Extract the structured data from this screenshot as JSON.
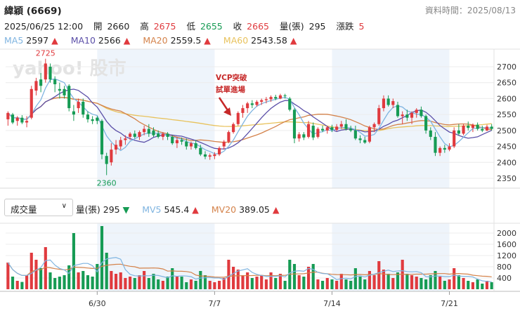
{
  "header": {
    "title": "緯穎 (6669)",
    "as_of": "資料時間：2025/08/13"
  },
  "quote": {
    "datetime": "2025/06/25 12:00",
    "open_label": "開",
    "open": "2660",
    "high_label": "高",
    "high": "2675",
    "low_label": "低",
    "low": "2655",
    "close_label": "收",
    "close": "2665",
    "vol_label": "量(張)",
    "vol": "295",
    "chg_label": "漲跌",
    "chg": "5"
  },
  "ma_legend": [
    {
      "label": "MA5",
      "value": "2597",
      "color": "#7fb4e0",
      "arrow": "▲"
    },
    {
      "label": "MA10",
      "value": "2566",
      "color": "#5b4fa8",
      "arrow": "▲"
    },
    {
      "label": "MA20",
      "value": "2559.5",
      "color": "#d4824a",
      "arrow": "▲"
    },
    {
      "label": "MA60",
      "value": "2543.58",
      "color": "#e8c25c",
      "arrow": "▲"
    }
  ],
  "volume_panel": {
    "dropdown_label": "成交量",
    "vol_label": "量(張)",
    "vol_value": "295",
    "vol_arrow": "▼",
    "mv5_label": "MV5",
    "mv5_value": "545.4",
    "mv5_arrow": "▲",
    "mv20_label": "MV20",
    "mv20_value": "389.05",
    "mv20_arrow": "▲"
  },
  "annotation": {
    "line1": "VCP突破",
    "line2": "試單進場"
  },
  "watermark": "yahoo! 股市",
  "chart_data": {
    "type": "candlestick",
    "price_axis": {
      "ticks": [
        2350,
        2400,
        2450,
        2500,
        2550,
        2600,
        2650,
        2700
      ]
    },
    "volume_axis": {
      "ticks": [
        400,
        800,
        1200,
        1600,
        2000
      ]
    },
    "date_labels": [
      "6/30",
      "7/7",
      "7/14",
      "7/21"
    ],
    "high_label": "2725",
    "low_label": "2360",
    "colors": {
      "up": "#e03a3e",
      "down": "#169b54"
    },
    "candles": [
      {
        "o": 2535,
        "h": 2560,
        "l": 2515,
        "c": 2555,
        "v": 950
      },
      {
        "o": 2550,
        "h": 2555,
        "l": 2520,
        "c": 2525,
        "v": 450
      },
      {
        "o": 2530,
        "h": 2545,
        "l": 2515,
        "c": 2540,
        "v": 300
      },
      {
        "o": 2540,
        "h": 2548,
        "l": 2520,
        "c": 2525,
        "v": 260
      },
      {
        "o": 2525,
        "h": 2545,
        "l": 2510,
        "c": 2530,
        "v": 500
      },
      {
        "o": 2540,
        "h": 2640,
        "l": 2535,
        "c": 2630,
        "v": 1300
      },
      {
        "o": 2625,
        "h": 2665,
        "l": 2610,
        "c": 2655,
        "v": 1050
      },
      {
        "o": 2660,
        "h": 2680,
        "l": 2620,
        "c": 2640,
        "v": 750
      },
      {
        "o": 2660,
        "h": 2725,
        "l": 2650,
        "c": 2710,
        "v": 1500
      },
      {
        "o": 2700,
        "h": 2710,
        "l": 2650,
        "c": 2660,
        "v": 600
      },
      {
        "o": 2660,
        "h": 2670,
        "l": 2620,
        "c": 2645,
        "v": 400
      },
      {
        "o": 2630,
        "h": 2650,
        "l": 2600,
        "c": 2625,
        "v": 450
      },
      {
        "o": 2630,
        "h": 2640,
        "l": 2600,
        "c": 2610,
        "v": 500
      },
      {
        "o": 2640,
        "h": 2645,
        "l": 2560,
        "c": 2570,
        "v": 850
      },
      {
        "o": 2560,
        "h": 2580,
        "l": 2530,
        "c": 2550,
        "v": 2000
      },
      {
        "o": 2570,
        "h": 2600,
        "l": 2555,
        "c": 2590,
        "v": 600
      },
      {
        "o": 2590,
        "h": 2600,
        "l": 2540,
        "c": 2550,
        "v": 650
      },
      {
        "o": 2550,
        "h": 2560,
        "l": 2525,
        "c": 2535,
        "v": 500
      },
      {
        "o": 2535,
        "h": 2545,
        "l": 2520,
        "c": 2530,
        "v": 450
      },
      {
        "o": 2540,
        "h": 2545,
        "l": 2520,
        "c": 2530,
        "v": 900
      },
      {
        "o": 2530,
        "h": 2535,
        "l": 2410,
        "c": 2425,
        "v": 2250
      },
      {
        "o": 2420,
        "h": 2430,
        "l": 2360,
        "c": 2395,
        "v": 1300
      },
      {
        "o": 2400,
        "h": 2460,
        "l": 2390,
        "c": 2440,
        "v": 650
      },
      {
        "o": 2440,
        "h": 2470,
        "l": 2425,
        "c": 2455,
        "v": 550
      },
      {
        "o": 2450,
        "h": 2480,
        "l": 2440,
        "c": 2470,
        "v": 600
      },
      {
        "o": 2470,
        "h": 2485,
        "l": 2455,
        "c": 2475,
        "v": 400
      },
      {
        "o": 2480,
        "h": 2495,
        "l": 2470,
        "c": 2490,
        "v": 450
      },
      {
        "o": 2490,
        "h": 2500,
        "l": 2475,
        "c": 2480,
        "v": 400
      },
      {
        "o": 2480,
        "h": 2500,
        "l": 2470,
        "c": 2495,
        "v": 500
      },
      {
        "o": 2495,
        "h": 2515,
        "l": 2485,
        "c": 2505,
        "v": 650
      },
      {
        "o": 2505,
        "h": 2520,
        "l": 2480,
        "c": 2490,
        "v": 400
      },
      {
        "o": 2500,
        "h": 2510,
        "l": 2480,
        "c": 2485,
        "v": 550
      },
      {
        "o": 2490,
        "h": 2500,
        "l": 2475,
        "c": 2480,
        "v": 350
      },
      {
        "o": 2480,
        "h": 2495,
        "l": 2470,
        "c": 2490,
        "v": 300
      },
      {
        "o": 2490,
        "h": 2495,
        "l": 2470,
        "c": 2480,
        "v": 450
      },
      {
        "o": 2480,
        "h": 2485,
        "l": 2455,
        "c": 2460,
        "v": 750
      },
      {
        "o": 2460,
        "h": 2480,
        "l": 2445,
        "c": 2470,
        "v": 450
      },
      {
        "o": 2470,
        "h": 2478,
        "l": 2455,
        "c": 2465,
        "v": 450
      },
      {
        "o": 2465,
        "h": 2475,
        "l": 2440,
        "c": 2450,
        "v": 250
      },
      {
        "o": 2450,
        "h": 2465,
        "l": 2440,
        "c": 2460,
        "v": 350
      },
      {
        "o": 2460,
        "h": 2470,
        "l": 2440,
        "c": 2445,
        "v": 300
      },
      {
        "o": 2445,
        "h": 2455,
        "l": 2420,
        "c": 2425,
        "v": 650
      },
      {
        "o": 2425,
        "h": 2435,
        "l": 2410,
        "c": 2418,
        "v": 500
      },
      {
        "o": 2418,
        "h": 2428,
        "l": 2408,
        "c": 2422,
        "v": 300
      },
      {
        "o": 2420,
        "h": 2432,
        "l": 2410,
        "c": 2425,
        "v": 250
      },
      {
        "o": 2425,
        "h": 2450,
        "l": 2420,
        "c": 2445,
        "v": 300
      },
      {
        "o": 2450,
        "h": 2470,
        "l": 2440,
        "c": 2465,
        "v": 400
      },
      {
        "o": 2465,
        "h": 2500,
        "l": 2460,
        "c": 2495,
        "v": 1050
      },
      {
        "o": 2495,
        "h": 2525,
        "l": 2490,
        "c": 2520,
        "v": 800
      },
      {
        "o": 2520,
        "h": 2560,
        "l": 2515,
        "c": 2555,
        "v": 700
      },
      {
        "o": 2555,
        "h": 2580,
        "l": 2540,
        "c": 2570,
        "v": 500
      },
      {
        "o": 2570,
        "h": 2590,
        "l": 2555,
        "c": 2585,
        "v": 600
      },
      {
        "o": 2585,
        "h": 2595,
        "l": 2570,
        "c": 2580,
        "v": 400
      },
      {
        "o": 2580,
        "h": 2595,
        "l": 2575,
        "c": 2590,
        "v": 450
      },
      {
        "o": 2590,
        "h": 2600,
        "l": 2580,
        "c": 2595,
        "v": 500
      },
      {
        "o": 2595,
        "h": 2605,
        "l": 2585,
        "c": 2598,
        "v": 350
      },
      {
        "o": 2598,
        "h": 2610,
        "l": 2590,
        "c": 2605,
        "v": 600
      },
      {
        "o": 2605,
        "h": 2612,
        "l": 2595,
        "c": 2600,
        "v": 400
      },
      {
        "o": 2600,
        "h": 2615,
        "l": 2598,
        "c": 2610,
        "v": 550
      },
      {
        "o": 2610,
        "h": 2615,
        "l": 2600,
        "c": 2608,
        "v": 300
      },
      {
        "o": 2600,
        "h": 2605,
        "l": 2560,
        "c": 2565,
        "v": 1050
      },
      {
        "o": 2565,
        "h": 2570,
        "l": 2460,
        "c": 2475,
        "v": 900
      },
      {
        "o": 2475,
        "h": 2495,
        "l": 2465,
        "c": 2488,
        "v": 500
      },
      {
        "o": 2488,
        "h": 2495,
        "l": 2470,
        "c": 2478,
        "v": 450
      },
      {
        "o": 2480,
        "h": 2530,
        "l": 2475,
        "c": 2520,
        "v": 800
      },
      {
        "o": 2515,
        "h": 2525,
        "l": 2470,
        "c": 2478,
        "v": 900
      },
      {
        "o": 2480,
        "h": 2510,
        "l": 2475,
        "c": 2505,
        "v": 350
      },
      {
        "o": 2505,
        "h": 2515,
        "l": 2495,
        "c": 2500,
        "v": 300
      },
      {
        "o": 2500,
        "h": 2515,
        "l": 2490,
        "c": 2510,
        "v": 400
      },
      {
        "o": 2510,
        "h": 2518,
        "l": 2495,
        "c": 2502,
        "v": 350
      },
      {
        "o": 2502,
        "h": 2520,
        "l": 2498,
        "c": 2512,
        "v": 300
      },
      {
        "o": 2512,
        "h": 2530,
        "l": 2505,
        "c": 2520,
        "v": 550
      },
      {
        "o": 2520,
        "h": 2535,
        "l": 2500,
        "c": 2505,
        "v": 350
      },
      {
        "o": 2505,
        "h": 2515,
        "l": 2495,
        "c": 2500,
        "v": 300
      },
      {
        "o": 2500,
        "h": 2515,
        "l": 2470,
        "c": 2475,
        "v": 750
      },
      {
        "o": 2475,
        "h": 2485,
        "l": 2460,
        "c": 2470,
        "v": 450
      },
      {
        "o": 2470,
        "h": 2480,
        "l": 2458,
        "c": 2462,
        "v": 350
      },
      {
        "o": 2465,
        "h": 2515,
        "l": 2460,
        "c": 2510,
        "v": 650
      },
      {
        "o": 2510,
        "h": 2525,
        "l": 2495,
        "c": 2520,
        "v": 500
      },
      {
        "o": 2520,
        "h": 2580,
        "l": 2515,
        "c": 2570,
        "v": 1000
      },
      {
        "o": 2570,
        "h": 2610,
        "l": 2560,
        "c": 2600,
        "v": 700
      },
      {
        "o": 2600,
        "h": 2610,
        "l": 2575,
        "c": 2580,
        "v": 550
      },
      {
        "o": 2580,
        "h": 2600,
        "l": 2570,
        "c": 2592,
        "v": 400
      },
      {
        "o": 2580,
        "h": 2590,
        "l": 2540,
        "c": 2545,
        "v": 600
      },
      {
        "o": 2545,
        "h": 2560,
        "l": 2520,
        "c": 2550,
        "v": 1050
      },
      {
        "o": 2550,
        "h": 2565,
        "l": 2530,
        "c": 2540,
        "v": 550
      },
      {
        "o": 2540,
        "h": 2560,
        "l": 2520,
        "c": 2555,
        "v": 500
      },
      {
        "o": 2555,
        "h": 2570,
        "l": 2540,
        "c": 2565,
        "v": 450
      },
      {
        "o": 2565,
        "h": 2575,
        "l": 2540,
        "c": 2545,
        "v": 400
      },
      {
        "o": 2545,
        "h": 2550,
        "l": 2490,
        "c": 2500,
        "v": 350
      },
      {
        "o": 2500,
        "h": 2510,
        "l": 2470,
        "c": 2480,
        "v": 500
      },
      {
        "o": 2480,
        "h": 2495,
        "l": 2420,
        "c": 2430,
        "v": 650
      },
      {
        "o": 2430,
        "h": 2450,
        "l": 2420,
        "c": 2445,
        "v": 450
      },
      {
        "o": 2445,
        "h": 2455,
        "l": 2430,
        "c": 2440,
        "v": 300
      },
      {
        "o": 2440,
        "h": 2460,
        "l": 2435,
        "c": 2450,
        "v": 350
      },
      {
        "o": 2450,
        "h": 2510,
        "l": 2445,
        "c": 2500,
        "v": 750
      },
      {
        "o": 2500,
        "h": 2520,
        "l": 2485,
        "c": 2490,
        "v": 500
      },
      {
        "o": 2490,
        "h": 2520,
        "l": 2485,
        "c": 2515,
        "v": 400
      },
      {
        "o": 2515,
        "h": 2528,
        "l": 2500,
        "c": 2508,
        "v": 300
      },
      {
        "o": 2508,
        "h": 2522,
        "l": 2495,
        "c": 2518,
        "v": 250
      },
      {
        "o": 2518,
        "h": 2525,
        "l": 2500,
        "c": 2505,
        "v": 350
      },
      {
        "o": 2505,
        "h": 2515,
        "l": 2495,
        "c": 2500,
        "v": 200
      },
      {
        "o": 2500,
        "h": 2518,
        "l": 2498,
        "c": 2512,
        "v": 300
      },
      {
        "o": 2512,
        "h": 2520,
        "l": 2500,
        "c": 2505,
        "v": 250
      }
    ]
  }
}
